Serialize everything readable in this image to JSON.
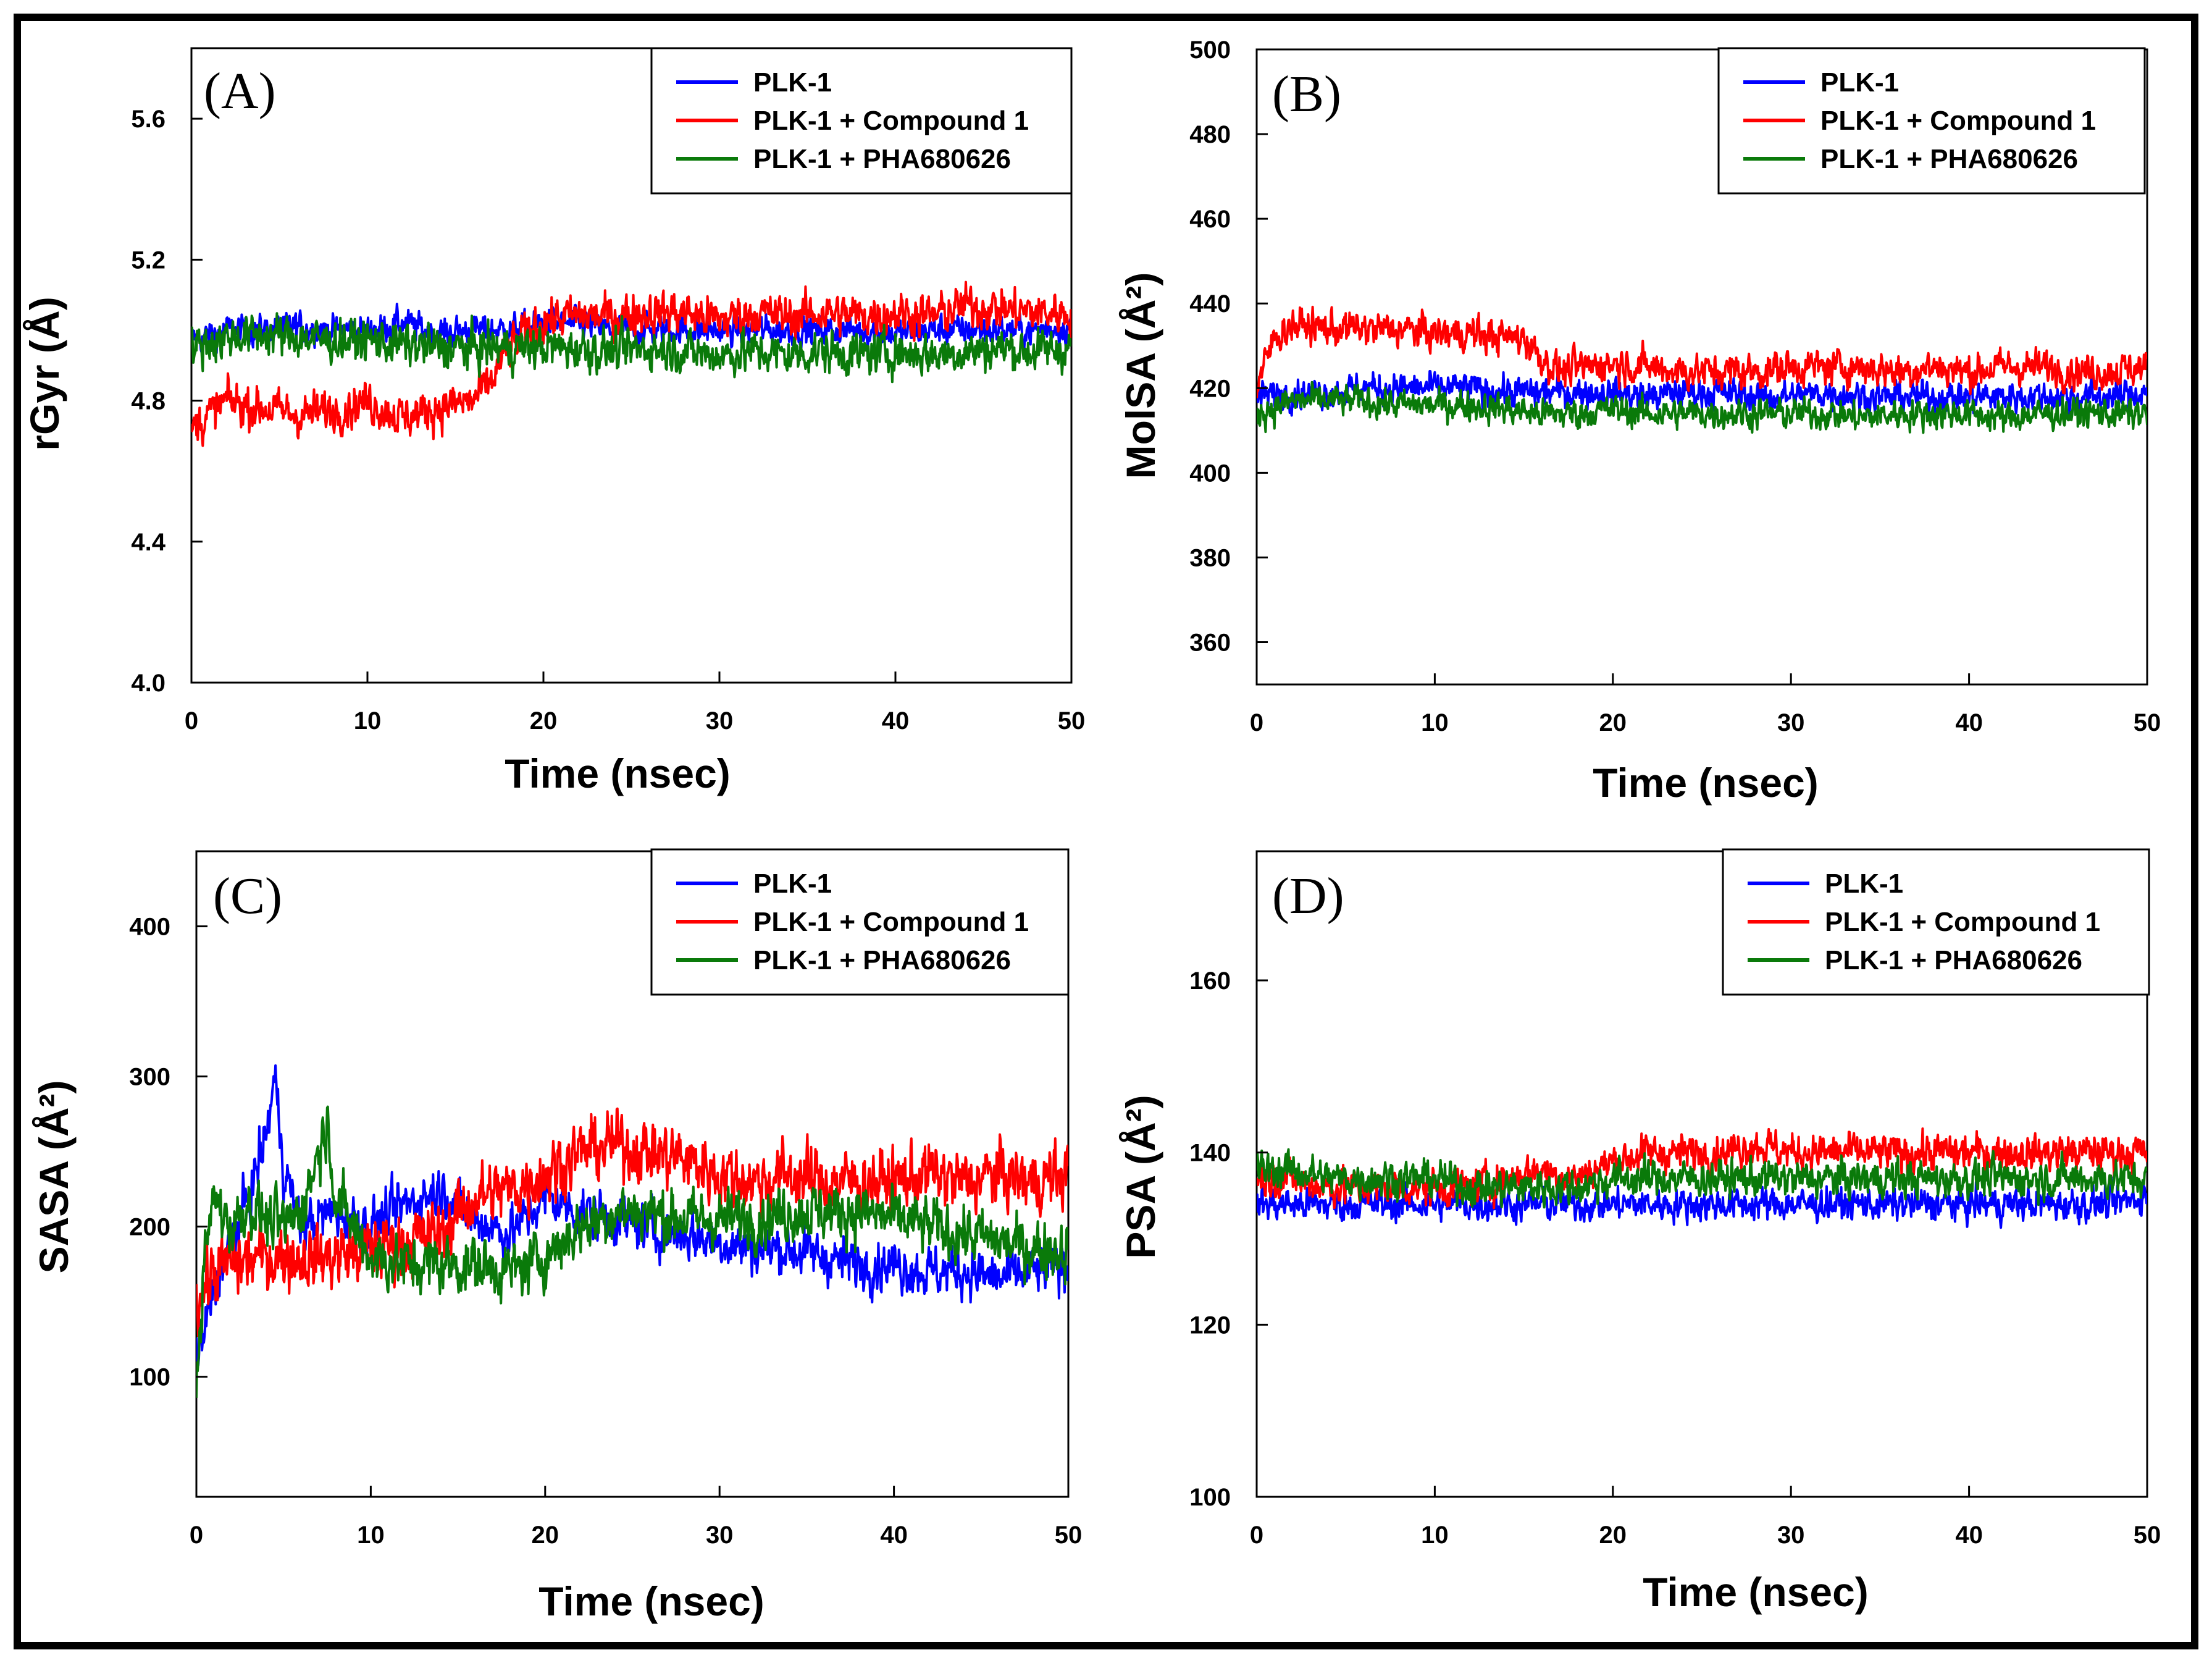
{
  "colors": {
    "PLK-1": "#0000ff",
    "PLK-1 + Compound 1": "#ff0000",
    "PLK-1 + PHA680626": "#0a7a0a"
  },
  "chart_data": [
    {
      "id": "A",
      "type": "line",
      "panel_label": "(A)",
      "xlabel": "Time (nsec)",
      "ylabel": "rGyr (Å)",
      "xlim": [
        0,
        50
      ],
      "ylim": [
        4.0,
        5.8
      ],
      "xticks": [
        0,
        10,
        20,
        30,
        40,
        50
      ],
      "yticks": [
        4.0,
        4.4,
        4.8,
        5.2,
        5.6
      ],
      "ytick_labels": [
        "4.0",
        "4.4",
        "4.8",
        "5.2",
        "5.6"
      ],
      "legend": [
        "PLK-1",
        "PLK-1 + Compound 1",
        "PLK-1 + PHA680626"
      ],
      "series": [
        {
          "name": "PLK-1",
          "x": [
            0,
            2,
            4,
            6,
            8,
            10,
            12,
            14,
            16,
            18,
            20,
            22,
            24,
            26,
            28,
            30,
            32,
            34,
            36,
            38,
            40,
            42,
            44,
            46,
            48,
            50
          ],
          "values": [
            4.97,
            5.0,
            5.0,
            5.01,
            5.0,
            5.0,
            5.02,
            4.99,
            5.0,
            5.0,
            5.02,
            5.02,
            5.0,
            5.0,
            5.0,
            5.0,
            5.0,
            5.0,
            5.0,
            5.0,
            4.99,
            5.0,
            5.0,
            5.0,
            5.0,
            5.01
          ],
          "noise": 0.035
        },
        {
          "name": "PLK-1 + Compound 1",
          "x": [
            0,
            2,
            4,
            6,
            8,
            10,
            12,
            14,
            16,
            17,
            18,
            20,
            22,
            24,
            26,
            28,
            30,
            32,
            34,
            36,
            38,
            40,
            42,
            44,
            46,
            48,
            50
          ],
          "values": [
            4.72,
            4.8,
            4.78,
            4.76,
            4.77,
            4.8,
            4.75,
            4.78,
            4.8,
            4.85,
            4.95,
            5.03,
            5.04,
            5.04,
            5.05,
            5.05,
            5.03,
            5.05,
            5.04,
            5.05,
            5.04,
            5.05,
            5.04,
            5.07,
            5.06,
            5.05,
            5.05
          ],
          "noise": 0.05
        },
        {
          "name": "PLK-1 + PHA680626",
          "x": [
            0,
            2,
            4,
            6,
            8,
            10,
            12,
            14,
            16,
            18,
            20,
            22,
            24,
            26,
            28,
            30,
            32,
            34,
            36,
            38,
            40,
            42,
            44,
            46,
            48,
            50
          ],
          "values": [
            4.95,
            4.98,
            4.99,
            4.98,
            4.97,
            4.97,
            4.96,
            4.95,
            4.95,
            4.95,
            4.95,
            4.95,
            4.94,
            4.95,
            4.94,
            4.93,
            4.94,
            4.93,
            4.94,
            4.93,
            4.94,
            4.93,
            4.94,
            4.95,
            4.94,
            4.95
          ],
          "noise": 0.05
        }
      ]
    },
    {
      "id": "B",
      "type": "line",
      "panel_label": "(B)",
      "xlabel": "Time (nsec)",
      "ylabel": "MolSA (Å²)",
      "xlim": [
        0,
        50
      ],
      "ylim": [
        350,
        500
      ],
      "xticks": [
        0,
        10,
        20,
        30,
        40,
        50
      ],
      "yticks": [
        360,
        380,
        400,
        420,
        440,
        460,
        480,
        500
      ],
      "ytick_labels": [
        "360",
        "380",
        "400",
        "420",
        "440",
        "460",
        "480",
        "500"
      ],
      "legend": [
        "PLK-1",
        "PLK-1 + Compound 1",
        "PLK-1 + PHA680626"
      ],
      "series": [
        {
          "name": "PLK-1",
          "x": [
            0,
            2,
            4,
            6,
            8,
            10,
            12,
            14,
            16,
            18,
            20,
            22,
            24,
            26,
            28,
            30,
            32,
            34,
            36,
            38,
            40,
            42,
            44,
            46,
            48,
            50
          ],
          "values": [
            418,
            419,
            419,
            420,
            420,
            420,
            420,
            419,
            419,
            419,
            419,
            418,
            419,
            419,
            418,
            418,
            419,
            418,
            418,
            418,
            418,
            418,
            418,
            418,
            418,
            419
          ],
          "noise": 3
        },
        {
          "name": "PLK-1 + Compound 1",
          "x": [
            0,
            1,
            2,
            4,
            6,
            8,
            10,
            12,
            14,
            15,
            16,
            17,
            20,
            22,
            24,
            26,
            28,
            30,
            32,
            34,
            36,
            38,
            40,
            42,
            44,
            46,
            48,
            50
          ],
          "values": [
            420,
            432,
            435,
            434,
            434,
            434,
            433,
            433,
            432,
            432,
            427,
            424,
            426,
            425,
            424,
            424,
            424,
            425,
            425,
            425,
            424,
            425,
            424,
            425,
            425,
            424,
            424,
            425
          ],
          "noise": 3.5
        },
        {
          "name": "PLK-1 + PHA680626",
          "x": [
            0,
            2,
            4,
            6,
            8,
            10,
            12,
            14,
            16,
            18,
            20,
            22,
            24,
            26,
            28,
            30,
            32,
            34,
            36,
            38,
            40,
            42,
            44,
            46,
            48,
            50
          ],
          "values": [
            414,
            417,
            417,
            417,
            416,
            416,
            416,
            415,
            414,
            414,
            415,
            414,
            414,
            414,
            414,
            414,
            414,
            413,
            414,
            414,
            414,
            413,
            414,
            414,
            414,
            414
          ],
          "noise": 3
        }
      ]
    },
    {
      "id": "C",
      "type": "line",
      "panel_label": "(C)",
      "xlabel": "Time (nsec)",
      "ylabel": "SASA (Å²)",
      "xlim": [
        0,
        50
      ],
      "ylim": [
        20,
        450
      ],
      "xticks": [
        0,
        10,
        20,
        30,
        40,
        50
      ],
      "yticks": [
        100,
        200,
        300,
        400
      ],
      "ytick_labels": [
        "100",
        "200",
        "300",
        "400"
      ],
      "legend": [
        "PLK-1",
        "PLK-1 + Compound 1",
        "PLK-1 + PHA680626"
      ],
      "series": [
        {
          "name": "PLK-1",
          "x": [
            0,
            0.5,
            1,
            2,
            3,
            4,
            4.5,
            5,
            6,
            8,
            10,
            12,
            14,
            16,
            18,
            20,
            22,
            24,
            26,
            28,
            30,
            32,
            34,
            36,
            38,
            40,
            42,
            44,
            46,
            48,
            50
          ],
          "values": [
            110,
            130,
            160,
            190,
            220,
            260,
            300,
            240,
            200,
            210,
            200,
            215,
            225,
            205,
            195,
            220,
            210,
            205,
            200,
            195,
            190,
            185,
            185,
            180,
            175,
            175,
            170,
            170,
            165,
            170,
            175
          ],
          "noise": 14
        },
        {
          "name": "PLK-1 + Compound 1",
          "x": [
            0,
            1,
            2,
            4,
            6,
            8,
            10,
            12,
            14,
            16,
            18,
            20,
            22,
            24,
            26,
            28,
            30,
            32,
            34,
            36,
            38,
            40,
            42,
            44,
            46,
            48,
            50
          ],
          "values": [
            150,
            170,
            175,
            180,
            180,
            180,
            185,
            190,
            195,
            220,
            225,
            235,
            250,
            255,
            250,
            245,
            235,
            230,
            235,
            230,
            230,
            230,
            235,
            230,
            235,
            230,
            235
          ],
          "noise": 18
        },
        {
          "name": "PLK-1 + PHA680626",
          "x": [
            0,
            0.5,
            1,
            2,
            3,
            4,
            5,
            6,
            7,
            7.5,
            8,
            10,
            12,
            14,
            16,
            18,
            20,
            22,
            24,
            26,
            28,
            30,
            32,
            34,
            36,
            38,
            40,
            42,
            44,
            46,
            48,
            50
          ],
          "values": [
            100,
            180,
            220,
            200,
            215,
            205,
            200,
            210,
            250,
            270,
            220,
            180,
            175,
            175,
            175,
            170,
            180,
            200,
            210,
            210,
            205,
            205,
            205,
            210,
            210,
            210,
            205,
            200,
            195,
            190,
            185,
            185
          ],
          "noise": 16
        }
      ]
    },
    {
      "id": "D",
      "type": "line",
      "panel_label": "(D)",
      "xlabel": "Time (nsec)",
      "ylabel": "PSA (Å²)",
      "xlim": [
        0,
        50
      ],
      "ylim": [
        100,
        175
      ],
      "xticks": [
        0,
        10,
        20,
        30,
        40,
        50
      ],
      "yticks": [
        100,
        120,
        140,
        160
      ],
      "ytick_labels": [
        "100",
        "120",
        "140",
        "160"
      ],
      "legend": [
        "PLK-1",
        "PLK-1 + Compound 1",
        "PLK-1 + PHA680626"
      ],
      "series": [
        {
          "name": "PLK-1",
          "x": [
            0,
            2,
            4,
            6,
            8,
            10,
            12,
            14,
            16,
            18,
            20,
            22,
            24,
            26,
            28,
            30,
            32,
            34,
            36,
            38,
            40,
            42,
            44,
            46,
            48,
            50
          ],
          "values": [
            134,
            134,
            134,
            134,
            134,
            134,
            134,
            134,
            134,
            134,
            134,
            134,
            134,
            134,
            134,
            134,
            134,
            134,
            134,
            134,
            134,
            134,
            134,
            134,
            134,
            135
          ],
          "noise": 1.6
        },
        {
          "name": "PLK-1 + Compound 1",
          "x": [
            0,
            2,
            4,
            6,
            8,
            10,
            12,
            14,
            16,
            18,
            20,
            22,
            24,
            26,
            28,
            30,
            32,
            34,
            36,
            38,
            40,
            42,
            44,
            46,
            48,
            50
          ],
          "values": [
            137,
            137,
            136,
            136,
            136,
            136,
            136,
            137,
            138,
            137,
            139,
            140,
            140,
            140,
            141,
            140,
            140,
            140,
            140,
            140,
            140,
            140,
            140,
            140,
            140,
            140
          ],
          "noise": 1.8
        },
        {
          "name": "PLK-1 + PHA680626",
          "x": [
            0,
            2,
            4,
            6,
            8,
            10,
            12,
            14,
            16,
            18,
            20,
            22,
            24,
            26,
            28,
            30,
            32,
            34,
            36,
            38,
            40,
            42,
            44,
            46,
            48,
            50
          ],
          "values": [
            138,
            138,
            137,
            137,
            137,
            137,
            136,
            136,
            136,
            136,
            137,
            137,
            137,
            137,
            137,
            137,
            137,
            137,
            137,
            137,
            137,
            137,
            137,
            137,
            137,
            137
          ],
          "noise": 1.8
        }
      ]
    }
  ]
}
